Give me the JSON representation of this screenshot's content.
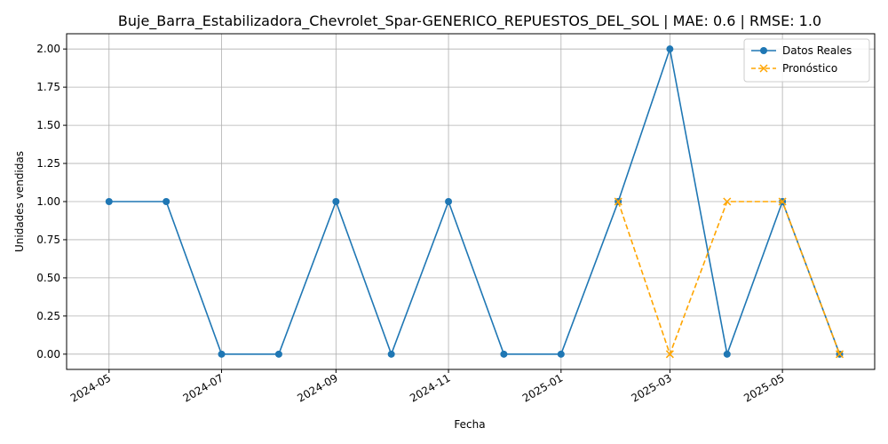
{
  "chart_data": {
    "type": "line",
    "title": "Buje_Barra_Estabilizadora_Chevrolet_Spar-GENERICO_REPUESTOS_DEL_SOL | MAE: 0.6 | RMSE: 1.0",
    "xlabel": "Fecha",
    "ylabel": "Unidades vendidas",
    "x_ticks": [
      "2024-05",
      "2024-07",
      "2024-09",
      "2024-11",
      "2025-01",
      "2025-03",
      "2025-05"
    ],
    "y_ticks": [
      "0.00",
      "0.25",
      "0.50",
      "0.75",
      "1.00",
      "1.25",
      "1.50",
      "1.75",
      "2.00"
    ],
    "xlim": [
      "2024-04-08",
      "2025-06-20"
    ],
    "ylim": [
      -0.1,
      2.1
    ],
    "grid": true,
    "legend_position": "top-right",
    "series": [
      {
        "name": "Datos Reales",
        "color": "#1f77b4",
        "style": "solid",
        "marker": "circle",
        "x": [
          "2024-05-01",
          "2024-06-01",
          "2024-07-01",
          "2024-08-01",
          "2024-09-01",
          "2024-10-01",
          "2024-11-01",
          "2024-12-01",
          "2025-01-01",
          "2025-02-01",
          "2025-03-01",
          "2025-04-01",
          "2025-05-01",
          "2025-06-01"
        ],
        "values": [
          1,
          1,
          0,
          0,
          1,
          0,
          1,
          0,
          0,
          1,
          2,
          0,
          1,
          0
        ]
      },
      {
        "name": "Pronóstico",
        "color": "#ffa500",
        "style": "dashed",
        "marker": "x",
        "x": [
          "2025-02-01",
          "2025-03-01",
          "2025-04-01",
          "2025-05-01",
          "2025-06-01"
        ],
        "values": [
          1,
          0,
          1,
          1,
          0
        ]
      }
    ]
  }
}
